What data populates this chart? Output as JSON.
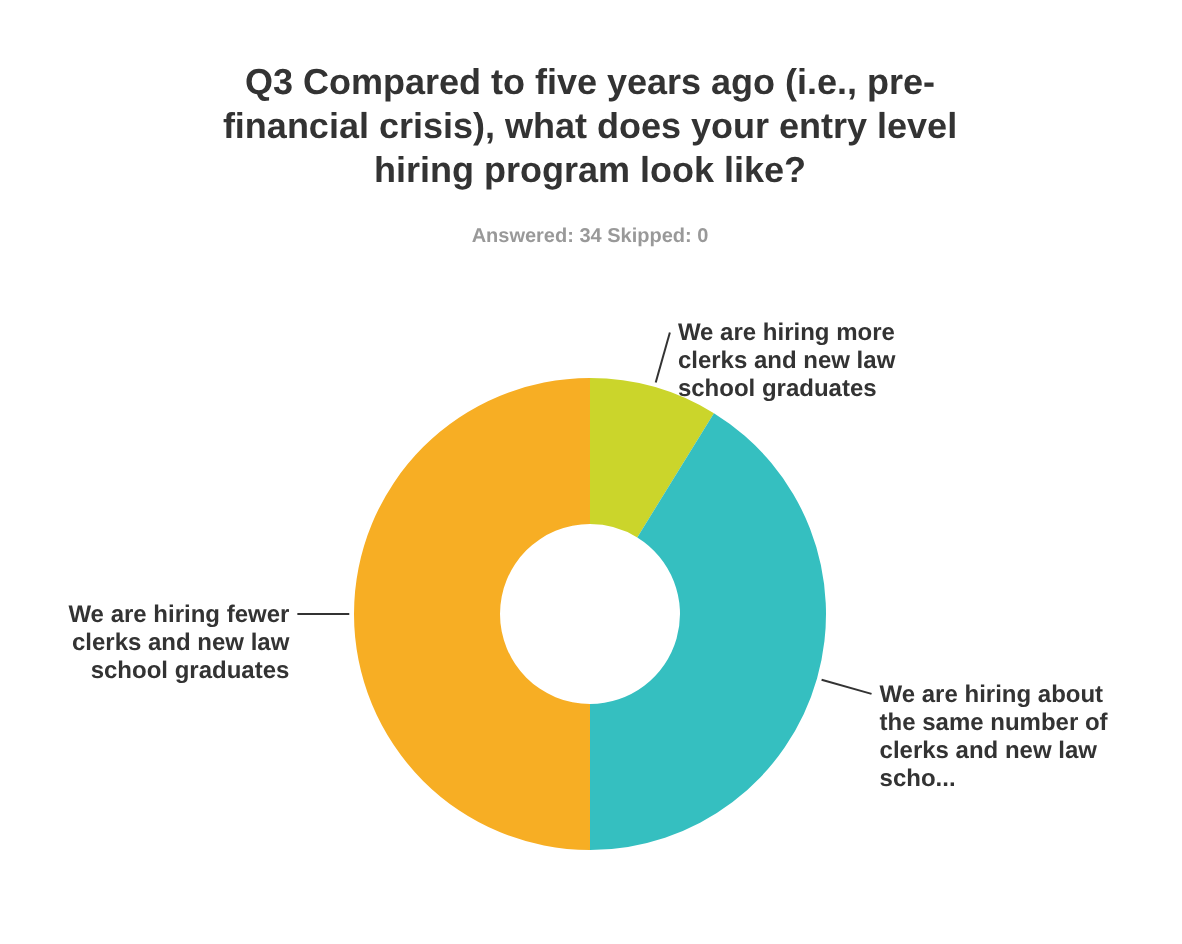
{
  "chart_data": {
    "type": "donut",
    "title": "Q3 Compared to five years ago (i.e., pre-financial crisis), what does your entry level hiring program look like?",
    "subtitle": "Answered: 34   Skipped: 0",
    "categories": [
      "We are hiring more clerks and new law school graduates",
      "We are hiring about the same number of clerks and new law scho...",
      "We are hiring fewer clerks and new law school graduates"
    ],
    "values": [
      8.8,
      41.2,
      50
    ],
    "colors": [
      "#cbd52b",
      "#35bfc0",
      "#f7ae24"
    ]
  }
}
